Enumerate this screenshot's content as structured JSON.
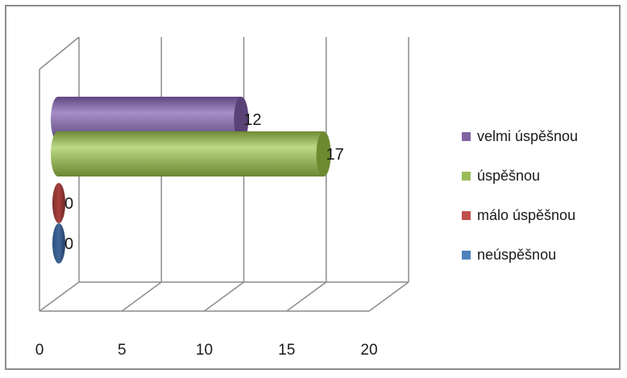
{
  "chart_data": {
    "type": "bar",
    "orientation": "horizontal",
    "style": "3d-cylinder",
    "title": "",
    "xlabel": "",
    "ylabel": "",
    "xlim": [
      0,
      20
    ],
    "x_ticks": [
      "0",
      "5",
      "10",
      "15",
      "20"
    ],
    "grid": true,
    "legend_position": "right",
    "series": [
      {
        "name": "velmi úspěšnou",
        "value": 12,
        "label": "12",
        "color": "#8064a2"
      },
      {
        "name": "úspěšnou",
        "value": 17,
        "label": "17",
        "color": "#9bbb59"
      },
      {
        "name": "málo úspěšnou",
        "value": 0,
        "label": "0",
        "color": "#c0504d"
      },
      {
        "name": "neúspěšnou",
        "value": 0,
        "label": "0",
        "color": "#4f81bd"
      }
    ]
  }
}
